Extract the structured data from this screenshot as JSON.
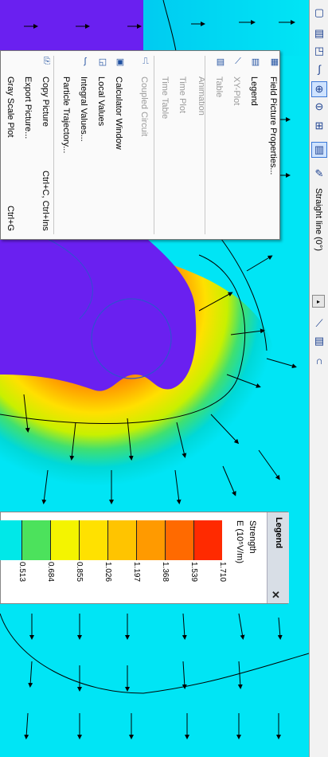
{
  "menu": {
    "items": [
      {
        "label": "Field Picture Properties...",
        "shortcut": "",
        "icon": "properties-icon",
        "enabled": true
      },
      {
        "label": "Legend",
        "shortcut": "",
        "icon": "legend-icon",
        "enabled": true
      },
      {
        "label": "XY-Plot",
        "shortcut": "",
        "icon": "xy-plot-icon",
        "enabled": false
      },
      {
        "label": "Table",
        "shortcut": "",
        "icon": "table-icon",
        "enabled": false
      },
      {
        "label": "Animation",
        "shortcut": "",
        "icon": "",
        "enabled": false
      },
      {
        "label": "Time Plot",
        "shortcut": "",
        "icon": "",
        "enabled": false
      },
      {
        "label": "Time Table",
        "shortcut": "",
        "icon": "",
        "enabled": false
      },
      {
        "label": "Coupled Circuit",
        "shortcut": "",
        "icon": "coupled-circuit-icon",
        "enabled": false
      },
      {
        "label": "Calculator Window",
        "shortcut": "",
        "icon": "calculator-icon",
        "enabled": true
      },
      {
        "label": "Local Values",
        "shortcut": "",
        "icon": "local-values-icon",
        "enabled": true
      },
      {
        "label": "Integral Values...",
        "shortcut": "",
        "icon": "integral-icon",
        "enabled": true
      },
      {
        "label": "Particle Trajectory...",
        "shortcut": "",
        "icon": "",
        "enabled": true
      },
      {
        "label": "Copy Picture",
        "shortcut": "Ctrl+C, Ctrl+Ins",
        "icon": "copy-picture-icon",
        "enabled": true
      },
      {
        "label": "Export Picture...",
        "shortcut": "",
        "icon": "",
        "enabled": true
      },
      {
        "label": "Gray Scale Plot",
        "shortcut": "Ctrl+G",
        "icon": "",
        "enabled": true
      }
    ]
  },
  "legend": {
    "title": "Legend",
    "quantity": "Strength",
    "unit": "E (10⁵V/m)",
    "close": "✕",
    "ticks": [
      "0.513",
      "0.684",
      "0.855",
      "1.026",
      "1.197",
      "1.368",
      "1.539",
      "1.710"
    ],
    "colors": [
      "#00e8e8",
      "#4ce25c",
      "#f4f400",
      "#ffe100",
      "#ffc400",
      "#ff9a00",
      "#ff6a00",
      "#ff2a00"
    ]
  },
  "toolbar": {
    "buttons": [
      {
        "icon": "window-icon"
      },
      {
        "icon": "table-view-icon"
      },
      {
        "icon": "picture-icon"
      },
      {
        "icon": "integral-icon"
      },
      {
        "icon": "zoom-in-icon"
      },
      {
        "icon": "zoom-out-icon"
      },
      {
        "icon": "zoom-fit-icon"
      },
      {
        "icon": "field-map-icon"
      },
      {
        "icon": "new-contour-icon"
      }
    ],
    "contour_label": "Straight line (0°)",
    "bottom_buttons": [
      {
        "icon": "xy-plot-icon"
      },
      {
        "icon": "table-icon"
      },
      {
        "icon": "magnet-icon"
      }
    ]
  }
}
